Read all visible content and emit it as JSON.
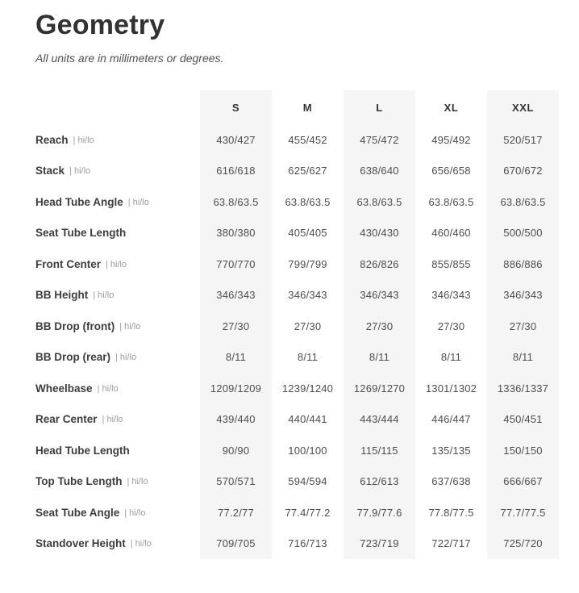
{
  "header": {
    "title": "Geometry",
    "subtitle": "All units are in millimeters or degrees."
  },
  "table": {
    "columns": [
      "S",
      "M",
      "L",
      "XL",
      "XXL"
    ],
    "shaded_columns": [
      0,
      2,
      4
    ],
    "separator": "|",
    "hi_lo_suffix": "hi/lo",
    "rows": [
      {
        "label": "Reach",
        "hi_lo": true,
        "values": [
          "430/427",
          "455/452",
          "475/472",
          "495/492",
          "520/517"
        ]
      },
      {
        "label": "Stack",
        "hi_lo": true,
        "values": [
          "616/618",
          "625/627",
          "638/640",
          "656/658",
          "670/672"
        ]
      },
      {
        "label": "Head Tube Angle",
        "hi_lo": true,
        "values": [
          "63.8/63.5",
          "63.8/63.5",
          "63.8/63.5",
          "63.8/63.5",
          "63.8/63.5"
        ]
      },
      {
        "label": "Seat Tube Length",
        "hi_lo": false,
        "values": [
          "380/380",
          "405/405",
          "430/430",
          "460/460",
          "500/500"
        ]
      },
      {
        "label": "Front Center",
        "hi_lo": true,
        "values": [
          "770/770",
          "799/799",
          "826/826",
          "855/855",
          "886/886"
        ]
      },
      {
        "label": "BB Height",
        "hi_lo": true,
        "values": [
          "346/343",
          "346/343",
          "346/343",
          "346/343",
          "346/343"
        ]
      },
      {
        "label": "BB Drop (front)",
        "hi_lo": true,
        "values": [
          "27/30",
          "27/30",
          "27/30",
          "27/30",
          "27/30"
        ]
      },
      {
        "label": "BB Drop (rear)",
        "hi_lo": true,
        "values": [
          "8/11",
          "8/11",
          "8/11",
          "8/11",
          "8/11"
        ]
      },
      {
        "label": "Wheelbase",
        "hi_lo": true,
        "values": [
          "1209/1209",
          "1239/1240",
          "1269/1270",
          "1301/1302",
          "1336/1337"
        ]
      },
      {
        "label": "Rear Center",
        "hi_lo": true,
        "values": [
          "439/440",
          "440/441",
          "443/444",
          "446/447",
          "450/451"
        ]
      },
      {
        "label": "Head Tube Length",
        "hi_lo": false,
        "values": [
          "90/90",
          "100/100",
          "115/115",
          "135/135",
          "150/150"
        ]
      },
      {
        "label": "Top Tube Length",
        "hi_lo": true,
        "values": [
          "570/571",
          "594/594",
          "612/613",
          "637/638",
          "666/667"
        ]
      },
      {
        "label": "Seat Tube Angle",
        "hi_lo": true,
        "values": [
          "77.2/77",
          "77.4/77.2",
          "77.9/77.6",
          "77.8/77.5",
          "77.7/77.5"
        ]
      },
      {
        "label": "Standover Height",
        "hi_lo": true,
        "values": [
          "709/705",
          "716/713",
          "723/719",
          "722/717",
          "725/720"
        ]
      }
    ]
  },
  "colors": {
    "shaded_column_bg": "#f5f5f5",
    "title_text": "#323232",
    "label_text": "#3d3d3d",
    "value_text": "#4d4d4d",
    "suffix_text": "#9c9c9c"
  }
}
